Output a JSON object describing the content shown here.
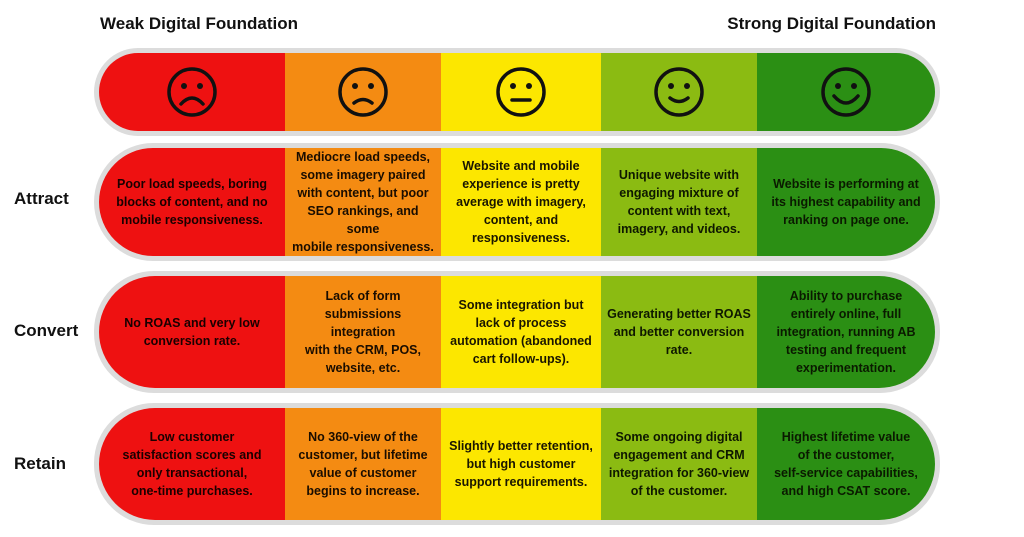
{
  "header": {
    "left": "Weak Digital Foundation",
    "right": "Strong Digital Foundation"
  },
  "faces": [
    "frowning-face-icon",
    "sad-face-icon",
    "neutral-face-icon",
    "slight-smile-face-icon",
    "smiling-face-icon"
  ],
  "colors": [
    "#ee1111",
    "#f48b12",
    "#fce700",
    "#8bbb12",
    "#2b8f14"
  ],
  "rows": [
    {
      "label": "Attract",
      "cells": [
        "Poor load speeds, boring\nblocks of content, and no\nmobile responsiveness.",
        "Mediocre load speeds,\nsome imagery paired\nwith content, but poor\nSEO rankings, and some\nmobile responsiveness.",
        "Website and mobile\nexperience is pretty\naverage with imagery,\ncontent, and\nresponsiveness.",
        "Unique website with\nengaging mixture of\ncontent with text,\nimagery, and videos.",
        "Website is performing at\nits highest capability and\nranking on page one."
      ]
    },
    {
      "label": "Convert",
      "cells": [
        "No ROAS and very low\nconversion rate.",
        "Lack of form\nsubmissions integration\nwith the CRM, POS,\nwebsite, etc.",
        "Some integration but\nlack of process\nautomation (abandoned\ncart follow-ups).",
        "Generating better ROAS\nand better conversion\nrate.",
        "Ability to purchase\nentirely online, full\nintegration, running AB\ntesting and frequent\nexperimentation."
      ]
    },
    {
      "label": "Retain",
      "cells": [
        "Low customer\nsatisfaction scores and\nonly transactional,\none-time purchases.",
        "No 360-view of the\ncustomer, but lifetime\nvalue of customer\nbegins to increase.",
        "Slightly better retention,\nbut high customer\nsupport requirements.",
        "Some ongoing digital\nengagement and CRM\nintegration for 360-view\nof the customer.",
        "Highest lifetime value\nof the customer,\nself-service capabilities,\nand high CSAT score."
      ]
    }
  ]
}
